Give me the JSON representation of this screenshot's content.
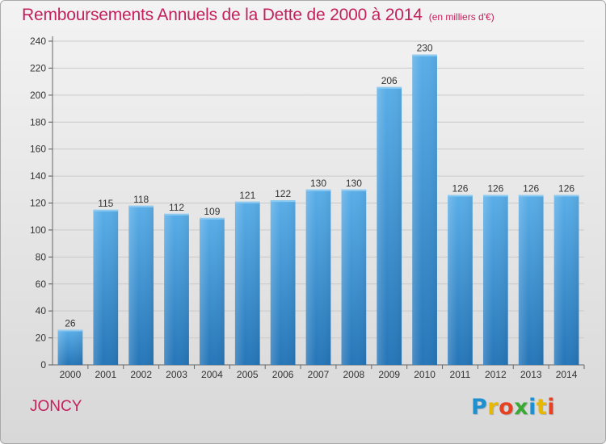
{
  "header": {
    "title": "Remboursements Annuels de la Dette de 2000 à 2014",
    "subtitle": "(en milliers d'€)"
  },
  "footer": {
    "commune": "JONCY",
    "brand": [
      "P",
      "r",
      "o",
      "x",
      "i",
      "t",
      "i"
    ],
    "brand_colors": [
      "#1e90d0",
      "#e8b800",
      "#e84020",
      "#3aaa35",
      "#1e90d0",
      "#e8b800",
      "#e84020"
    ]
  },
  "colors": {
    "accent": "#c3215c",
    "bar_top": "#5aaee8",
    "bar_bottom": "#2676b8"
  },
  "chart_data": {
    "type": "bar",
    "title": "Remboursements Annuels de la Dette de 2000 à 2014",
    "subtitle": "(en milliers d'€)",
    "categories": [
      "2000",
      "2001",
      "2002",
      "2003",
      "2004",
      "2005",
      "2006",
      "2007",
      "2008",
      "2009",
      "2010",
      "2011",
      "2012",
      "2013",
      "2014"
    ],
    "values": [
      26,
      115,
      118,
      112,
      109,
      121,
      122,
      130,
      130,
      206,
      230,
      126,
      126,
      126,
      126
    ],
    "ylim": [
      0,
      240
    ],
    "yticks": [
      0,
      20,
      40,
      60,
      80,
      100,
      120,
      140,
      160,
      180,
      200,
      220,
      240
    ],
    "grid": true,
    "legend": "none"
  }
}
